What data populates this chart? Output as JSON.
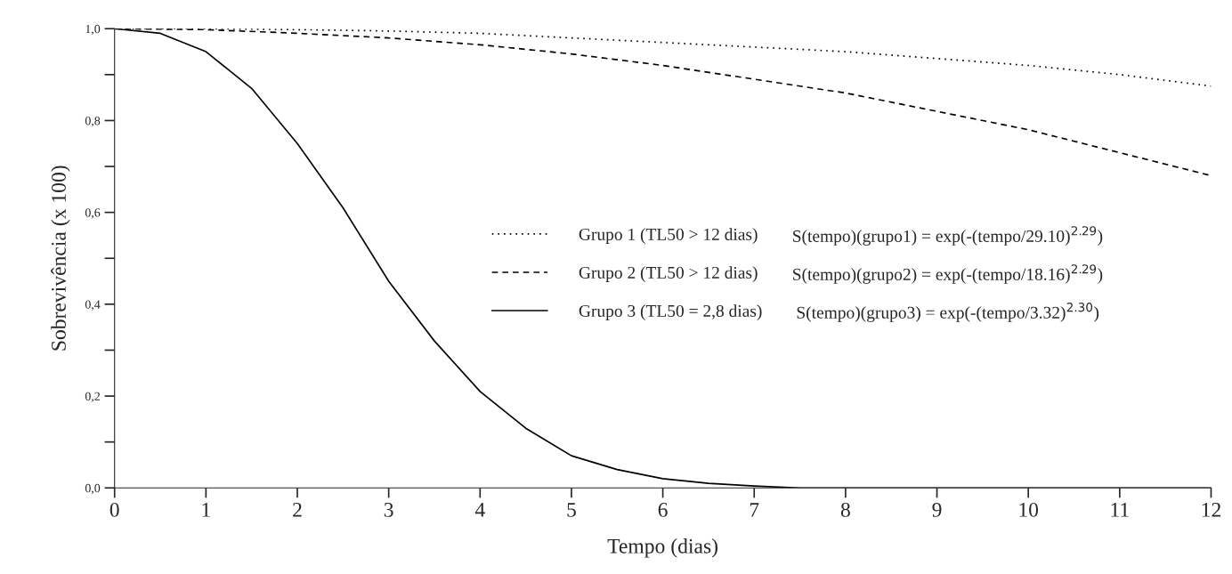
{
  "chart_data": {
    "type": "line",
    "xlabel": "Tempo (dias)",
    "ylabel": "Sobrevivência (x 100)",
    "xlim": [
      0,
      12
    ],
    "ylim": [
      0,
      1
    ],
    "xticks": [
      0,
      1,
      2,
      3,
      4,
      5,
      6,
      7,
      8,
      9,
      10,
      11,
      12
    ],
    "yticks": [
      {
        "value": 0,
        "label": "0,0"
      },
      {
        "value": 0.1,
        "label": null
      },
      {
        "value": 0.2,
        "label": "0,2"
      },
      {
        "value": 0.3,
        "label": null
      },
      {
        "value": 0.4,
        "label": "0,4"
      },
      {
        "value": 0.5,
        "label": null
      },
      {
        "value": 0.6,
        "label": "0,6"
      },
      {
        "value": 0.7,
        "label": null
      },
      {
        "value": 0.8,
        "label": "0,8"
      },
      {
        "value": 0.9,
        "label": null
      },
      {
        "value": 1,
        "label": "1,0"
      }
    ],
    "grid": false,
    "legend": "right",
    "marker": "none",
    "series": [
      {
        "name": "Grupo 1 (TL50 > 12 dias)",
        "color": "#000000",
        "line_style": "dotted",
        "x": [
          0,
          1,
          2,
          3,
          4,
          5,
          6,
          7,
          8,
          9,
          10,
          11,
          12
        ],
        "values": [
          1.0,
          1.0,
          0.998,
          0.995,
          0.99,
          0.98,
          0.97,
          0.96,
          0.95,
          0.935,
          0.92,
          0.9,
          0.875
        ]
      },
      {
        "name": "Grupo 2 (TL50 > 12 dias)",
        "color": "#000000",
        "line_style": "dashed",
        "x": [
          0,
          1,
          2,
          3,
          4,
          5,
          6,
          7,
          8,
          9,
          10,
          11,
          12
        ],
        "values": [
          1.0,
          0.998,
          0.99,
          0.98,
          0.965,
          0.945,
          0.92,
          0.89,
          0.86,
          0.82,
          0.78,
          0.73,
          0.68
        ]
      },
      {
        "name": "Grupo 3 (TL50 = 2,8 dias)",
        "color": "#000000",
        "line_style": "solid",
        "x": [
          0,
          0.5,
          1,
          1.5,
          2,
          2.5,
          3,
          3.5,
          4,
          4.5,
          5,
          5.5,
          6,
          6.5,
          7,
          7.5,
          8,
          9,
          10,
          11,
          12
        ],
        "values": [
          1.0,
          0.99,
          0.95,
          0.87,
          0.75,
          0.61,
          0.45,
          0.32,
          0.21,
          0.13,
          0.07,
          0.04,
          0.02,
          0.01,
          0.004,
          0.0,
          0.0,
          0.0,
          0.0,
          0.0,
          0.0
        ]
      }
    ],
    "annotations": [
      "S(tempo)(grupo1) = exp(-(tempo/29.10)$^{2.29}$)",
      "S(tempo)(grupo2) = exp(-(tempo/18.16)$^{2.29}$)",
      "S(tempo)(grupo3) = exp(-(tempo/3.32)$^{2.30}$)"
    ]
  }
}
